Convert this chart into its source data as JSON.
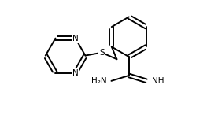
{
  "bg_color": "#ffffff",
  "line_color": "#000000",
  "lw": 1.4,
  "fig_width": 2.63,
  "fig_height": 1.55,
  "dpi": 100,
  "xlim": [
    0.0,
    1.0
  ],
  "ylim": [
    0.0,
    1.0
  ]
}
